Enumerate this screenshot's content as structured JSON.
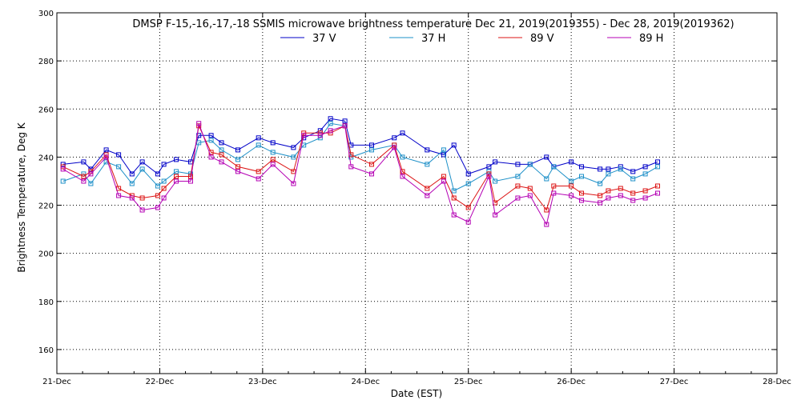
{
  "chart_data": {
    "type": "line",
    "title": "DMSP F-15,-16,-17,-18 SSMIS microwave brightness temperature Dec 21, 2019(2019355) - Dec 28, 2019(2019362)",
    "xlabel": "Date (EST)",
    "ylabel": "Brightness Temperature, Deg K",
    "xlim": [
      0,
      7
    ],
    "ylim": [
      150,
      300
    ],
    "grid": true,
    "legend_position": "top-center",
    "x_tick_labels": [
      "21-Dec",
      "22-Dec",
      "23-Dec",
      "24-Dec",
      "25-Dec",
      "26-Dec",
      "27-Dec",
      "28-Dec"
    ],
    "y_tick_labels": [
      "160",
      "180",
      "200",
      "220",
      "240",
      "260",
      "280",
      "300"
    ],
    "x_unit": "days since Dec 21, 2019 00:00 EST",
    "series": [
      {
        "name": "37 V",
        "color": "#0000c8",
        "x": [
          0.06,
          0.26,
          0.33,
          0.48,
          0.6,
          0.73,
          0.83,
          0.98,
          1.04,
          1.16,
          1.3,
          1.38,
          1.5,
          1.6,
          1.76,
          1.96,
          2.1,
          2.3,
          2.4,
          2.56,
          2.66,
          2.8,
          2.86,
          3.06,
          3.28,
          3.36,
          3.6,
          3.76,
          3.86,
          4.0,
          4.2,
          4.26,
          4.48,
          4.6,
          4.76,
          4.83,
          5.0,
          5.1,
          5.28,
          5.36,
          5.48,
          5.6,
          5.72,
          5.84
        ],
        "y": [
          237,
          238,
          235,
          243,
          241,
          233,
          238,
          233,
          237,
          239,
          238,
          249,
          249,
          246,
          243,
          248,
          246,
          244,
          248,
          251,
          256,
          255,
          245,
          245,
          248,
          250,
          243,
          241,
          245,
          233,
          236,
          238,
          237,
          237,
          240,
          236,
          238,
          236,
          235,
          235,
          236,
          234,
          236,
          238
        ]
      },
      {
        "name": "37 H",
        "color": "#1e90c8",
        "x": [
          0.06,
          0.26,
          0.33,
          0.48,
          0.6,
          0.73,
          0.83,
          0.98,
          1.04,
          1.16,
          1.3,
          1.38,
          1.5,
          1.6,
          1.76,
          1.96,
          2.1,
          2.3,
          2.4,
          2.56,
          2.66,
          2.8,
          2.86,
          3.06,
          3.28,
          3.36,
          3.6,
          3.76,
          3.86,
          4.0,
          4.2,
          4.26,
          4.48,
          4.6,
          4.76,
          4.83,
          5.0,
          5.1,
          5.28,
          5.36,
          5.48,
          5.6,
          5.72,
          5.84
        ],
        "y": [
          230,
          233,
          229,
          238,
          236,
          229,
          235,
          228,
          230,
          234,
          233,
          246,
          247,
          243,
          239,
          245,
          242,
          240,
          245,
          248,
          254,
          253,
          240,
          243,
          245,
          240,
          237,
          243,
          226,
          229,
          234,
          230,
          232,
          237,
          231,
          236,
          230,
          232,
          229,
          233,
          235,
          231,
          233,
          236
        ]
      },
      {
        "name": "89 V",
        "color": "#dc1414",
        "x": [
          0.06,
          0.26,
          0.33,
          0.48,
          0.6,
          0.73,
          0.83,
          0.98,
          1.04,
          1.16,
          1.3,
          1.38,
          1.5,
          1.6,
          1.76,
          1.96,
          2.1,
          2.3,
          2.4,
          2.56,
          2.66,
          2.8,
          2.86,
          3.06,
          3.28,
          3.36,
          3.6,
          3.76,
          3.86,
          4.0,
          4.2,
          4.26,
          4.48,
          4.6,
          4.76,
          4.83,
          5.0,
          5.1,
          5.28,
          5.36,
          5.48,
          5.6,
          5.72,
          5.84
        ],
        "y": [
          236,
          232,
          234,
          241,
          227,
          224,
          223,
          224,
          227,
          232,
          232,
          253,
          242,
          241,
          236,
          234,
          239,
          234,
          250,
          250,
          250,
          253,
          241,
          237,
          245,
          234,
          227,
          232,
          223,
          219,
          233,
          221,
          228,
          227,
          218,
          228,
          228,
          225,
          224,
          226,
          227,
          225,
          226,
          228
        ]
      },
      {
        "name": "89 H",
        "color": "#b400b4",
        "x": [
          0.06,
          0.26,
          0.33,
          0.48,
          0.6,
          0.73,
          0.83,
          0.98,
          1.04,
          1.16,
          1.3,
          1.38,
          1.5,
          1.6,
          1.76,
          1.96,
          2.1,
          2.3,
          2.4,
          2.56,
          2.66,
          2.8,
          2.86,
          3.06,
          3.28,
          3.36,
          3.6,
          3.76,
          3.86,
          4.0,
          4.2,
          4.26,
          4.48,
          4.6,
          4.76,
          4.83,
          5.0,
          5.1,
          5.28,
          5.36,
          5.48,
          5.6,
          5.72,
          5.84
        ],
        "y": [
          235,
          230,
          233,
          240,
          224,
          223,
          218,
          219,
          223,
          230,
          230,
          254,
          240,
          238,
          234,
          231,
          237,
          229,
          249,
          249,
          251,
          253,
          236,
          233,
          244,
          232,
          224,
          230,
          216,
          213,
          232,
          216,
          223,
          224,
          212,
          225,
          224,
          222,
          221,
          223,
          224,
          222,
          223,
          225
        ]
      }
    ]
  }
}
